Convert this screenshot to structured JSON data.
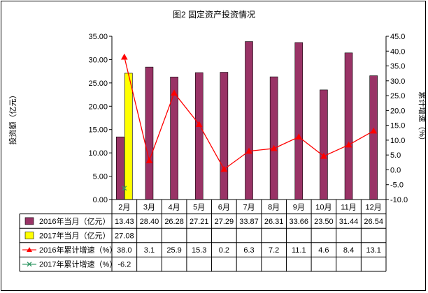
{
  "chart_data": {
    "type": "bar",
    "title": "图2 固定资产投资情况",
    "ylabel": "投资额（亿元）",
    "y2label": "累计增速（%）",
    "ylim": [
      0,
      35
    ],
    "y2lim": [
      -10,
      45
    ],
    "yticks": [
      "0.00",
      "5.00",
      "10.00",
      "15.00",
      "20.00",
      "25.00",
      "30.00",
      "35.00"
    ],
    "y2ticks": [
      "-10.0",
      "-5.0",
      "0.0",
      "5.0",
      "10.0",
      "15.0",
      "20.0",
      "25.0",
      "30.0",
      "35.0",
      "40.0",
      "45.0"
    ],
    "categories": [
      "2月",
      "3月",
      "4月",
      "5月",
      "6月",
      "7月",
      "8月",
      "9月",
      "10月",
      "11月",
      "12月"
    ],
    "grid": false,
    "legend": "data-table",
    "series": [
      {
        "name": "2016年当月（亿元）",
        "kind": "bar",
        "axis": "left",
        "color": "#993366",
        "values": [
          13.43,
          28.4,
          26.28,
          27.21,
          27.29,
          33.87,
          26.31,
          33.66,
          23.5,
          31.44,
          26.54
        ],
        "labels": [
          "13.43",
          "28.40",
          "26.28",
          "27.21",
          "27.29",
          "33.87",
          "26.31",
          "33.66",
          "23.50",
          "31.44",
          "26.54"
        ]
      },
      {
        "name": "2017年当月（亿元）",
        "kind": "bar",
        "axis": "left",
        "color": "#ffff00",
        "values": [
          27.08,
          null,
          null,
          null,
          null,
          null,
          null,
          null,
          null,
          null,
          null
        ],
        "labels": [
          "27.08",
          "",
          "",
          "",
          "",
          "",
          "",
          "",
          "",
          "",
          ""
        ]
      },
      {
        "name": "2016年累计增速（%）",
        "kind": "line",
        "axis": "right",
        "color": "#ff0000",
        "marker": "triangle",
        "values": [
          38.0,
          3.1,
          25.9,
          15.3,
          0.2,
          6.3,
          7.2,
          11.1,
          4.6,
          8.4,
          13.1
        ],
        "labels": [
          "38.0",
          "3.1",
          "25.9",
          "15.3",
          "0.2",
          "6.3",
          "7.2",
          "11.1",
          "4.6",
          "8.4",
          "13.1"
        ]
      },
      {
        "name": "2017年累计增速（%）",
        "kind": "line",
        "axis": "right",
        "color": "#339966",
        "marker": "x",
        "values": [
          -6.2,
          null,
          null,
          null,
          null,
          null,
          null,
          null,
          null,
          null,
          null
        ],
        "labels": [
          "-6.2",
          "",
          "",
          "",
          "",
          "",
          "",
          "",
          "",
          "",
          ""
        ]
      }
    ]
  }
}
